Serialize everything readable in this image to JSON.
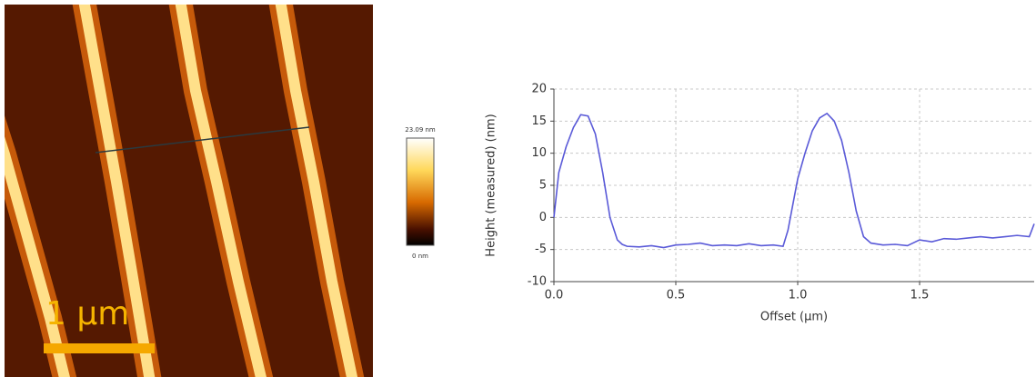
{
  "image": {
    "scale_bar_label": "1 µm",
    "colorbar": {
      "max_label": "23.09 nm",
      "min_label": "0 nm"
    }
  },
  "chart_data": {
    "type": "line",
    "x_label": "Offset (µm)",
    "y_label": "Height (measured) (nm)",
    "xlim": [
      0,
      1.97
    ],
    "ylim": [
      -10,
      20
    ],
    "xticks": [
      {
        "value": 0,
        "label": "0.0"
      },
      0.5,
      {
        "value": 1,
        "label": "1.0"
      },
      1.5
    ],
    "yticks": [
      -10,
      -5,
      0,
      5,
      10,
      15,
      20
    ],
    "grid": true,
    "series": [
      {
        "color": "#5a5ad8",
        "x": [
          0,
          0.02,
          0.05,
          0.08,
          0.11,
          0.14,
          0.17,
          0.2,
          0.23,
          0.26,
          0.28,
          0.3,
          0.35,
          0.4,
          0.45,
          0.5,
          0.55,
          0.6,
          0.65,
          0.7,
          0.75,
          0.8,
          0.85,
          0.9,
          0.94,
          0.96,
          0.98,
          1.0,
          1.03,
          1.06,
          1.09,
          1.12,
          1.15,
          1.18,
          1.21,
          1.24,
          1.27,
          1.3,
          1.35,
          1.4,
          1.45,
          1.5,
          1.55,
          1.6,
          1.65,
          1.7,
          1.75,
          1.8,
          1.85,
          1.9,
          1.95,
          1.97
        ],
        "values": [
          0,
          7,
          11,
          14,
          16,
          15.8,
          13,
          7,
          0,
          -3.5,
          -4.2,
          -4.5,
          -4.6,
          -4.4,
          -4.7,
          -4.3,
          -4.2,
          -4,
          -4.4,
          -4.3,
          -4.4,
          -4.1,
          -4.4,
          -4.3,
          -4.5,
          -2,
          2,
          6,
          10,
          13.5,
          15.5,
          16.2,
          15,
          12,
          7,
          1,
          -3,
          -4,
          -4.3,
          -4.2,
          -4.4,
          -3.5,
          -3.8,
          -3.3,
          -3.4,
          -3.2,
          -3.0,
          -3.2,
          -3,
          -2.8,
          -3,
          -1
        ]
      }
    ]
  }
}
